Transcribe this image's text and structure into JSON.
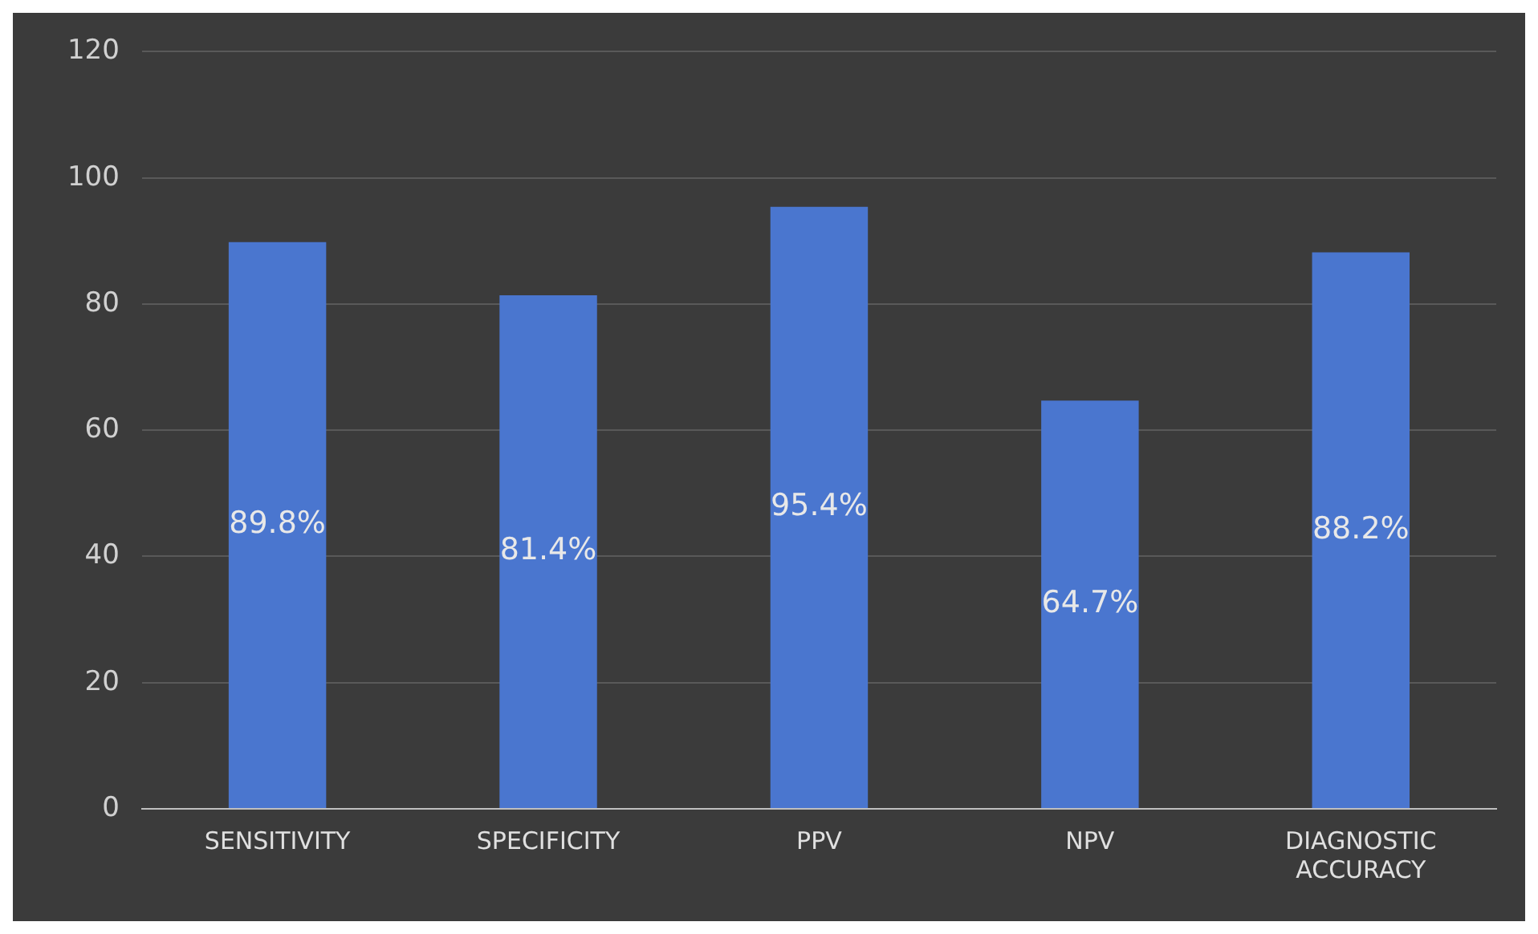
{
  "chart_data": {
    "type": "bar",
    "categories": [
      "SENSITIVITY",
      "SPECIFICITY",
      "PPV",
      "NPV",
      "DIAGNOSTIC ACCURACY"
    ],
    "values": [
      89.8,
      81.4,
      95.4,
      64.7,
      88.2
    ],
    "value_labels": [
      "89.8%",
      "81.4%",
      "95.4%",
      "64.7%",
      "88.2%"
    ],
    "color": "#4a76cf",
    "ylim": [
      0,
      120
    ],
    "yticks": [
      0,
      20,
      40,
      60,
      80,
      100,
      120
    ],
    "grid": "y",
    "legend": false
  }
}
